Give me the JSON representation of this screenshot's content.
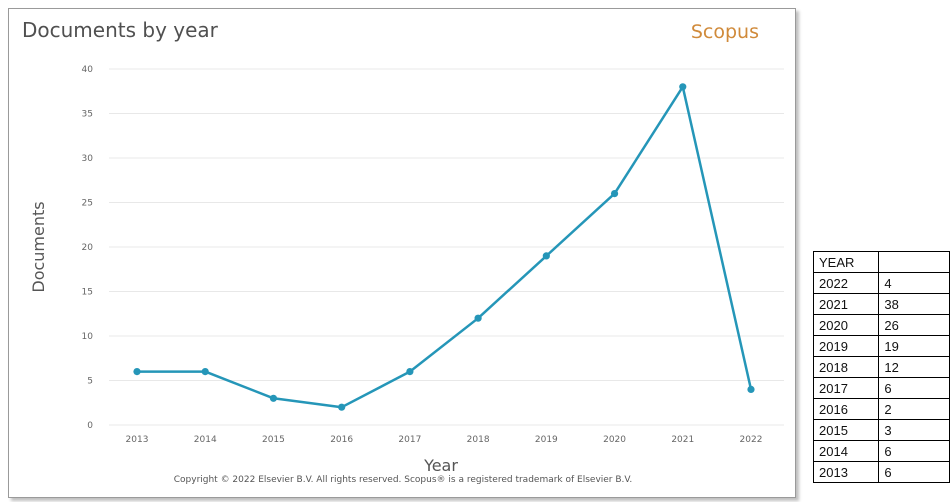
{
  "chart_title": "Documents by year",
  "brand": "Scopus",
  "copyright": "Copyright © 2022 Elsevier B.V. All rights reserved. Scopus® is a registered trademark of Elsevier B.V.",
  "colors": {
    "line": "#2596b8",
    "brand": "#d08a3a",
    "grid": "#e8e8e8"
  },
  "chart_data": {
    "type": "line",
    "title": "Documents by year",
    "xlabel": "Year",
    "ylabel": "Documents",
    "x": [
      "2013",
      "2014",
      "2015",
      "2016",
      "2017",
      "2018",
      "2019",
      "2020",
      "2021",
      "2022"
    ],
    "series": [
      {
        "values": [
          6,
          6,
          3,
          2,
          6,
          12,
          19,
          26,
          38,
          4
        ]
      }
    ],
    "ylim": [
      0,
      40
    ],
    "yticks": [
      "0",
      "5",
      "10",
      "15",
      "20",
      "25",
      "30",
      "35",
      "40"
    ],
    "grid": true,
    "legend": "none"
  },
  "table": {
    "header": "YEAR",
    "rows": [
      {
        "year": "2022",
        "count": "4"
      },
      {
        "year": "2021",
        "count": "38"
      },
      {
        "year": "2020",
        "count": "26"
      },
      {
        "year": "2019",
        "count": "19"
      },
      {
        "year": "2018",
        "count": "12"
      },
      {
        "year": "2017",
        "count": "6"
      },
      {
        "year": "2016",
        "count": "2"
      },
      {
        "year": "2015",
        "count": "3"
      },
      {
        "year": "2014",
        "count": "6"
      },
      {
        "year": "2013",
        "count": "6"
      }
    ]
  }
}
